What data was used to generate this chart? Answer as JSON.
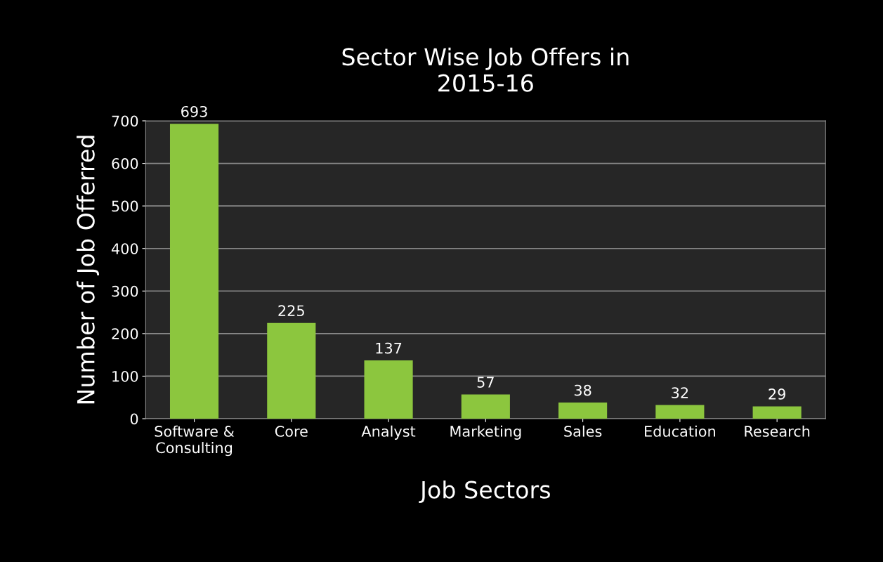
{
  "chart_data": {
    "type": "bar",
    "title": "Sector Wise Job Offers in\n2015-16",
    "xlabel": "Job Sectors",
    "ylabel": "Number of Job Offerred",
    "categories": [
      "Software &\nConsulting",
      "Core",
      "Analyst",
      "Marketing",
      "Sales",
      "Education",
      "Research"
    ],
    "values": [
      693,
      225,
      137,
      57,
      38,
      32,
      29
    ],
    "color": "#8cc63e",
    "ylim": [
      0,
      700
    ],
    "yticks": [
      0,
      100,
      200,
      300,
      400,
      500,
      600,
      700
    ],
    "grid": "y",
    "data_labels": true
  }
}
